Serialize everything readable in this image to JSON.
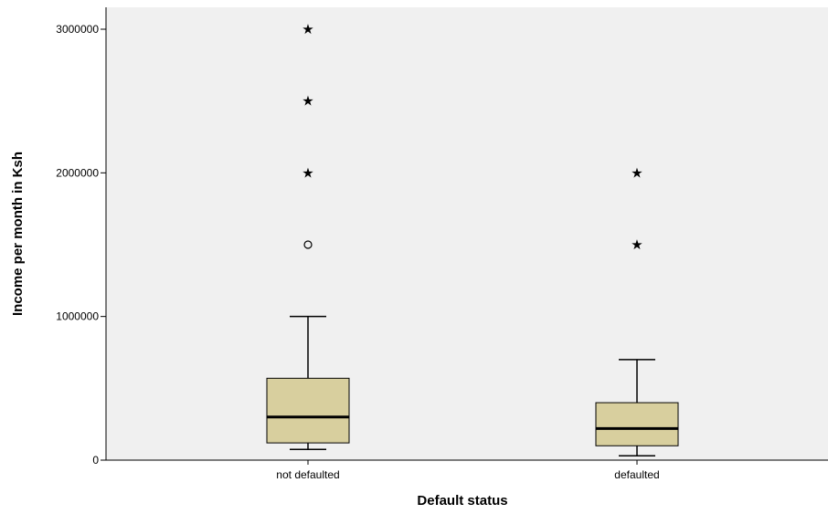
{
  "chart_data": {
    "type": "boxplot",
    "xlabel": "Default status",
    "ylabel": "Income per month in Ksh",
    "ylim": [
      0,
      3000000
    ],
    "yticks": [
      0,
      1000000,
      2000000,
      3000000
    ],
    "ytick_labels": [
      "0",
      "1000000",
      "2000000",
      "3000000"
    ],
    "grid": false,
    "colors": {
      "plot_background": "#f0f0f0",
      "box_fill": "#d8cf9e",
      "line": "#000000"
    },
    "categories": [
      "not defaulted",
      "defaulted"
    ],
    "boxes": [
      {
        "category": "not defaulted",
        "whisker_low": 75000,
        "q1": 120000,
        "median": 300000,
        "q3": 570000,
        "whisker_high": 1000000,
        "outliers": [
          1500000
        ],
        "extremes": [
          2000000,
          2500000,
          3000000
        ]
      },
      {
        "category": "defaulted",
        "whisker_low": 30000,
        "q1": 100000,
        "median": 220000,
        "q3": 400000,
        "whisker_high": 700000,
        "outliers": [],
        "extremes": [
          1500000,
          2000000
        ]
      }
    ]
  }
}
